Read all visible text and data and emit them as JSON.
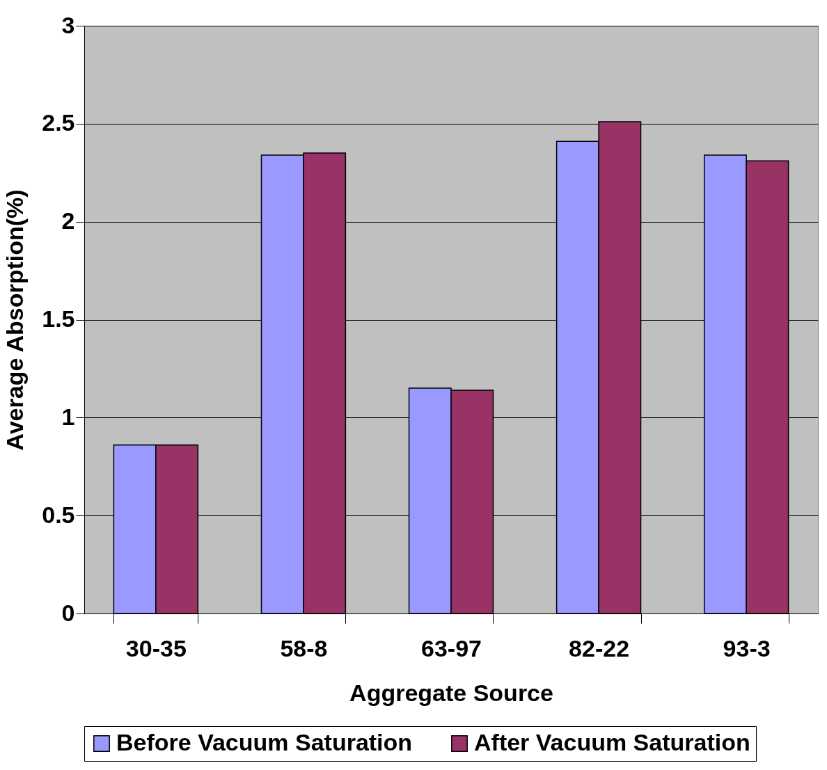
{
  "chart_data": {
    "type": "bar",
    "xlabel": "Aggregate Source",
    "ylabel": "Average Absorption(%)",
    "categories": [
      "30-35",
      "58-8",
      "63-97",
      "82-22",
      "93-3"
    ],
    "series": [
      {
        "name": "Before Vacuum Saturation",
        "color": "#9999ff",
        "values": [
          0.86,
          2.34,
          1.15,
          2.41,
          2.34
        ]
      },
      {
        "name": "After Vacuum Saturation",
        "color": "#993366",
        "values": [
          0.86,
          2.35,
          1.14,
          2.51,
          2.31
        ]
      }
    ],
    "ylim": [
      0,
      3
    ],
    "yticks": [
      0,
      0.5,
      1,
      1.5,
      2,
      2.5,
      3
    ],
    "grid": "y",
    "legend": "bottom"
  }
}
